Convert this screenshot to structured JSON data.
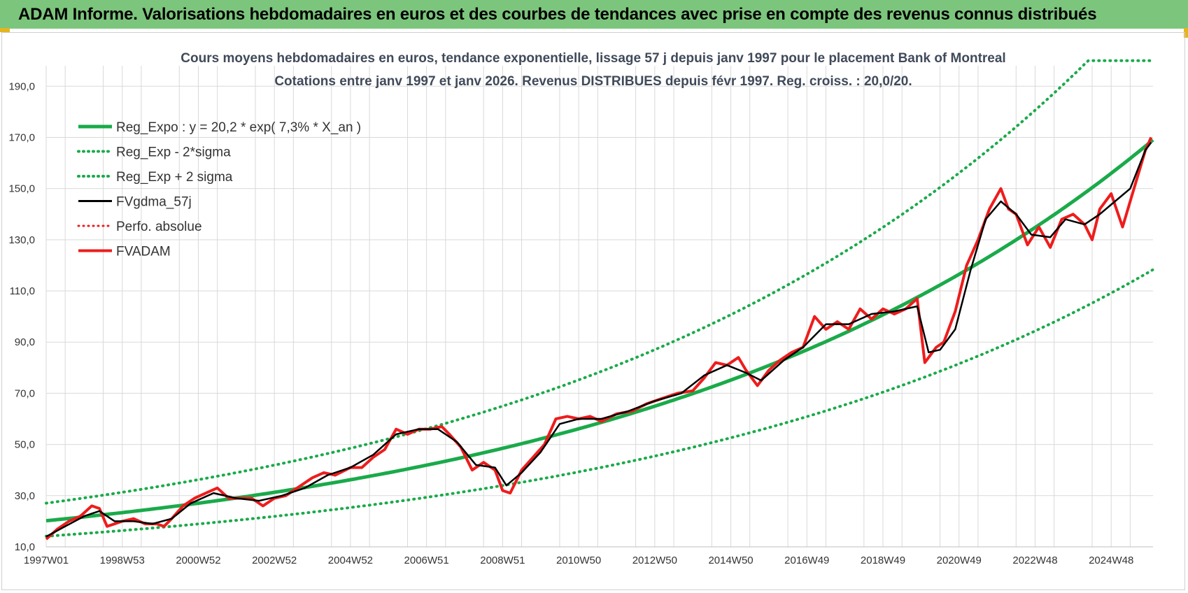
{
  "banner": {
    "title": "ADAM Informe. Valorisations hebdomadaires en euros et des courbes de tendances avec prise en compte des revenus connus distribués"
  },
  "colors": {
    "banner_bg": "#7cc57c",
    "trend": "#1aaa4a",
    "price": "#ee1c1c",
    "smooth": "#000000",
    "grid": "#d9d9d9"
  },
  "chart_data": {
    "type": "line",
    "title": "Cours moyens hebdomadaires en euros, tendance exponentielle, lissage 57 j depuis janv 1997  pour le placement Bank of Montreal",
    "subtitle": "Cotations entre janv 1997 et janv 2026. Revenus DISTRIBUES depuis févr 1997. Reg. croiss. : 20,0/20.",
    "xlabel": "",
    "ylabel": "",
    "ylim": [
      10,
      198
    ],
    "y_ticks": [
      "10,0",
      "30,0",
      "50,0",
      "70,0",
      "90,0",
      "110,0",
      "130,0",
      "150,0",
      "170,0",
      "190,0"
    ],
    "y_tick_values": [
      10,
      30,
      50,
      70,
      90,
      110,
      130,
      150,
      170,
      190
    ],
    "x_range": [
      1997.0,
      2026.1
    ],
    "x_ticks": [
      "1997W01",
      "1998W53",
      "2000W52",
      "2002W52",
      "2004W52",
      "2006W51",
      "2008W51",
      "2010W50",
      "2012W50",
      "2014W50",
      "2016W49",
      "2018W49",
      "2020W49",
      "2022W48",
      "2024W48"
    ],
    "x_tick_years": [
      1997.0,
      1999.0,
      2001.0,
      2003.0,
      2005.0,
      2007.0,
      2009.0,
      2011.0,
      2013.0,
      2015.0,
      2017.0,
      2019.0,
      2021.0,
      2023.0,
      2025.0
    ],
    "grid": true,
    "legend_position": "top-left",
    "legend": [
      {
        "label": "Reg_Expo : y = 20,2 * exp( 7,3% *  X_an )",
        "color": "#1aaa4a",
        "style": "solid",
        "width": 5
      },
      {
        "label": "Reg_Exp - 2*sigma",
        "color": "#1aaa4a",
        "style": "dotted",
        "width": 4
      },
      {
        "label": "Reg_Exp + 2 sigma",
        "color": "#1aaa4a",
        "style": "dotted",
        "width": 4
      },
      {
        "label": "FVgdma_57j",
        "color": "#000000",
        "style": "solid",
        "width": 3
      },
      {
        "label": "Perfo. absolue",
        "color": "#ee1c1c",
        "style": "dotted",
        "width": 3
      },
      {
        "label": "FVADAM",
        "color": "#ee1c1c",
        "style": "solid",
        "width": 4
      }
    ],
    "regression": {
      "a": 20.2,
      "rate": 0.073,
      "lower_factor": 0.7,
      "upper_factor": 1.34,
      "upper_cap": 200
    },
    "series": [
      {
        "name": "FVADAM",
        "x": [
          1997.0,
          1997.3,
          1997.6,
          1997.9,
          1998.2,
          1998.4,
          1998.6,
          1998.8,
          1999.0,
          1999.3,
          1999.6,
          1999.9,
          2000.1,
          2000.3,
          2000.6,
          2000.9,
          2001.2,
          2001.5,
          2001.8,
          2002.1,
          2002.4,
          2002.7,
          2003.0,
          2003.3,
          2003.6,
          2004.0,
          2004.3,
          2004.6,
          2005.0,
          2005.3,
          2005.6,
          2005.9,
          2006.2,
          2006.5,
          2006.8,
          2007.1,
          2007.4,
          2007.6,
          2007.9,
          2008.2,
          2008.5,
          2008.8,
          2009.0,
          2009.2,
          2009.5,
          2009.8,
          2010.1,
          2010.4,
          2010.7,
          2011.0,
          2011.3,
          2011.6,
          2012.0,
          2012.4,
          2012.8,
          2013.2,
          2013.6,
          2014.0,
          2014.3,
          2014.6,
          2014.9,
          2015.2,
          2015.4,
          2015.7,
          2016.0,
          2016.3,
          2016.6,
          2016.9,
          2017.2,
          2017.5,
          2017.8,
          2018.1,
          2018.4,
          2018.7,
          2019.0,
          2019.3,
          2019.6,
          2019.9,
          2020.1,
          2020.25,
          2020.4,
          2020.6,
          2020.9,
          2021.2,
          2021.5,
          2021.8,
          2022.1,
          2022.3,
          2022.5,
          2022.8,
          2023.1,
          2023.4,
          2023.7,
          2024.0,
          2024.3,
          2024.5,
          2024.7,
          2025.0,
          2025.3,
          2025.6,
          2025.9,
          2026.05
        ],
        "values": [
          13,
          17,
          20,
          22,
          26,
          25,
          18,
          19,
          20,
          21,
          19,
          19,
          18,
          21,
          26,
          29,
          31,
          33,
          29,
          29,
          29,
          26,
          29,
          30,
          33,
          37,
          39,
          38,
          41,
          41,
          45,
          48,
          56,
          54,
          56,
          56,
          57,
          54,
          49,
          40,
          43,
          40,
          32,
          31,
          40,
          45,
          50,
          60,
          61,
          60,
          61,
          59,
          62,
          63,
          66,
          68,
          70,
          71,
          76,
          82,
          81,
          84,
          79,
          73,
          79,
          83,
          86,
          88,
          100,
          95,
          98,
          95,
          103,
          99,
          103,
          101,
          103,
          107,
          82,
          85,
          88,
          90,
          102,
          120,
          130,
          142,
          150,
          142,
          140,
          128,
          135,
          127,
          138,
          140,
          136,
          130,
          142,
          148,
          135,
          150,
          165,
          170
        ]
      },
      {
        "name": "FVgdma_57j",
        "x": [
          1997.0,
          1997.5,
          1998.0,
          1998.4,
          1998.8,
          1999.3,
          1999.8,
          2000.3,
          2000.8,
          2001.4,
          2002.0,
          2002.6,
          2003.2,
          2003.8,
          2004.4,
          2005.0,
          2005.6,
          2006.2,
          2006.8,
          2007.3,
          2007.8,
          2008.3,
          2008.8,
          2009.1,
          2009.5,
          2010.0,
          2010.5,
          2011.0,
          2011.6,
          2012.3,
          2013.0,
          2013.7,
          2014.3,
          2014.9,
          2015.4,
          2015.8,
          2016.4,
          2016.9,
          2017.5,
          2018.1,
          2018.7,
          2019.3,
          2019.9,
          2020.2,
          2020.5,
          2020.9,
          2021.3,
          2021.7,
          2022.1,
          2022.5,
          2022.9,
          2023.4,
          2023.8,
          2024.3,
          2024.7,
          2025.1,
          2025.5,
          2025.9,
          2026.05
        ],
        "values": [
          14,
          18,
          22,
          24,
          20,
          20,
          19,
          21,
          27,
          31,
          29,
          28,
          30,
          33,
          38,
          41,
          46,
          54,
          56,
          56,
          51,
          42,
          41,
          34,
          39,
          47,
          58,
          60,
          60,
          63,
          67,
          70,
          77,
          81,
          78,
          75,
          83,
          88,
          97,
          97,
          101,
          102,
          104,
          86,
          87,
          95,
          118,
          138,
          145,
          140,
          132,
          131,
          138,
          136,
          140,
          145,
          150,
          165,
          168
        ]
      }
    ]
  }
}
